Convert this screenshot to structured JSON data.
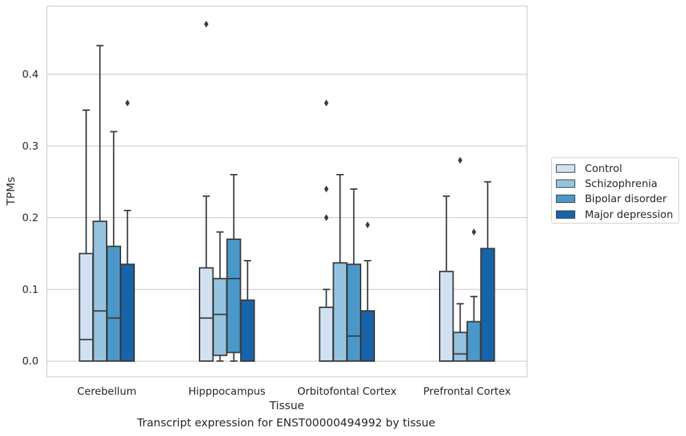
{
  "caption": "Transcript expression for ENST00000494992 by tissue",
  "chart_data": {
    "type": "box",
    "xlabel": "Tissue",
    "ylabel": "TPMs",
    "ylim": [
      -0.022,
      0.495
    ],
    "yticks": [
      "0.0",
      "0.1",
      "0.2",
      "0.3",
      "0.4"
    ],
    "grid": true,
    "legend_position": "right",
    "categories": [
      "Cerebellum",
      "Hipppocampus",
      "Orbitofontal Cortex",
      "Prefrontal Cortex"
    ],
    "series": [
      {
        "name": "Control",
        "color": "#d0e1f2",
        "boxes": [
          {
            "min": 0.0,
            "q1": 0.0,
            "median": 0.03,
            "q3": 0.15,
            "max": 0.35,
            "outliers": []
          },
          {
            "min": 0.0,
            "q1": 0.0,
            "median": 0.06,
            "q3": 0.13,
            "max": 0.23,
            "outliers": [
              0.47
            ]
          },
          {
            "min": 0.0,
            "q1": 0.0,
            "median": 0.0,
            "q3": 0.075,
            "max": 0.1,
            "outliers": [
              0.2,
              0.24,
              0.36
            ]
          },
          {
            "min": 0.0,
            "q1": 0.0,
            "median": 0.0,
            "q3": 0.125,
            "max": 0.23,
            "outliers": []
          }
        ]
      },
      {
        "name": "Schizophrenia",
        "color": "#94c4df",
        "boxes": [
          {
            "min": 0.0,
            "q1": 0.0,
            "median": 0.07,
            "q3": 0.195,
            "max": 0.44,
            "outliers": []
          },
          {
            "min": 0.0,
            "q1": 0.008,
            "median": 0.065,
            "q3": 0.115,
            "max": 0.18,
            "outliers": []
          },
          {
            "min": 0.0,
            "q1": 0.0,
            "median": 0.0,
            "q3": 0.137,
            "max": 0.26,
            "outliers": []
          },
          {
            "min": 0.0,
            "q1": 0.0,
            "median": 0.01,
            "q3": 0.04,
            "max": 0.08,
            "outliers": [
              0.28
            ]
          }
        ]
      },
      {
        "name": "Bipolar disorder",
        "color": "#4a98c9",
        "boxes": [
          {
            "min": 0.0,
            "q1": 0.0,
            "median": 0.06,
            "q3": 0.16,
            "max": 0.32,
            "outliers": []
          },
          {
            "min": 0.0,
            "q1": 0.012,
            "median": 0.115,
            "q3": 0.17,
            "max": 0.26,
            "outliers": []
          },
          {
            "min": 0.0,
            "q1": 0.0,
            "median": 0.035,
            "q3": 0.135,
            "max": 0.24,
            "outliers": []
          },
          {
            "min": 0.0,
            "q1": 0.0,
            "median": 0.0,
            "q3": 0.055,
            "max": 0.09,
            "outliers": [
              0.18
            ]
          }
        ]
      },
      {
        "name": "Major depression",
        "color": "#1764ab",
        "boxes": [
          {
            "min": 0.0,
            "q1": 0.0,
            "median": 0.0,
            "q3": 0.135,
            "max": 0.21,
            "outliers": [
              0.36
            ]
          },
          {
            "min": 0.0,
            "q1": 0.0,
            "median": 0.0,
            "q3": 0.085,
            "max": 0.14,
            "outliers": []
          },
          {
            "min": 0.0,
            "q1": 0.0,
            "median": 0.0,
            "q3": 0.07,
            "max": 0.14,
            "outliers": [
              0.19
            ]
          },
          {
            "min": 0.0,
            "q1": 0.0,
            "median": 0.0,
            "q3": 0.157,
            "max": 0.25,
            "outliers": []
          }
        ]
      }
    ]
  }
}
